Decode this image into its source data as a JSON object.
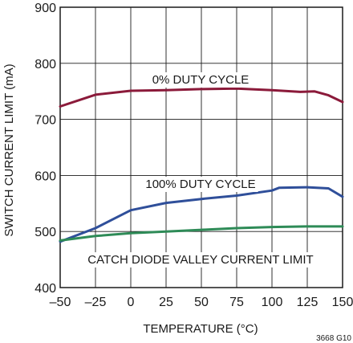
{
  "chart_data": {
    "type": "line",
    "xlabel": "TEMPERATURE (°C)",
    "ylabel": "SWITCH CURRENT LIMIT (mA)",
    "xlim": [
      -50,
      150
    ],
    "ylim": [
      400,
      900
    ],
    "x_ticks": [
      -50,
      -25,
      0,
      25,
      50,
      75,
      100,
      125,
      150
    ],
    "x_tick_labels": [
      "–50",
      "–25",
      "0",
      "25",
      "50",
      "75",
      "100",
      "125",
      "150"
    ],
    "y_ticks": [
      400,
      500,
      600,
      700,
      800,
      900
    ],
    "y_tick_labels": [
      "400",
      "500",
      "600",
      "700",
      "800",
      "900"
    ],
    "grid": true,
    "figure_id": "3668 G10",
    "series": [
      {
        "name": "0% DUTY CYCLE",
        "color": "#8b1a3a",
        "x": [
          -50,
          -25,
          0,
          25,
          50,
          75,
          100,
          120,
          130,
          140,
          150
        ],
        "y": [
          723,
          744,
          751,
          752,
          754,
          755,
          752,
          749,
          750,
          743,
          731
        ]
      },
      {
        "name": "100% DUTY CYCLE",
        "color": "#2f4f9a",
        "x": [
          -50,
          -25,
          0,
          25,
          50,
          75,
          100,
          105,
          125,
          140,
          150
        ],
        "y": [
          482,
          506,
          538,
          551,
          558,
          564,
          573,
          578,
          579,
          577,
          562
        ]
      },
      {
        "name": "CATCH DIODE VALLEY CURRENT LIMIT",
        "color": "#2e8b57",
        "x": [
          -50,
          -25,
          0,
          25,
          50,
          75,
          100,
          125,
          150
        ],
        "y": [
          484,
          492,
          497,
          500,
          503,
          506,
          508,
          509,
          509
        ]
      }
    ]
  }
}
